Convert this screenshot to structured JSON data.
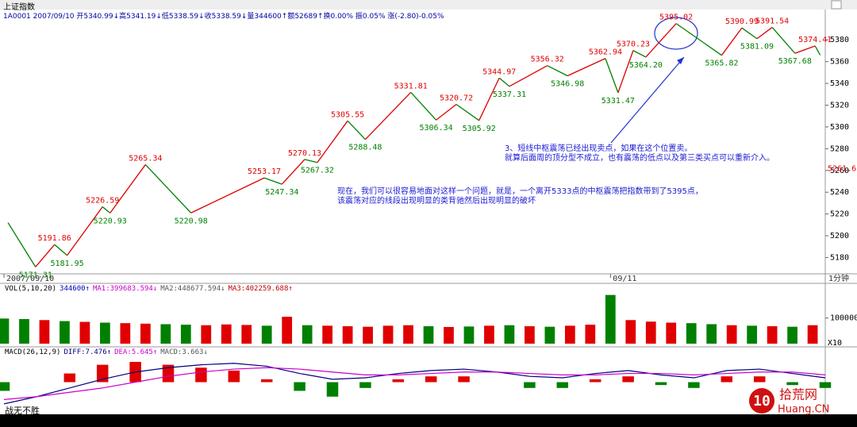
{
  "header": {
    "title": "上证指数",
    "info": "1A0001 2007/09/10 开5340.99↓高5341.19↓低5338.59↓收5338.59↓量344600↑额52689↑换0.00% 振0.05% 涨(-2.80)-0.05%"
  },
  "chart_data": [
    {
      "type": "line",
      "name": "price",
      "x": [
        1.6,
        12.5,
        20,
        25,
        39,
        42,
        56,
        74,
        103,
        110,
        119,
        124,
        136,
        143,
        161,
        171,
        179,
        188,
        196,
        200,
        215,
        223,
        238,
        243,
        249,
        254,
        266,
        284,
        292,
        298,
        304,
        313,
        321,
        323
      ],
      "values": [
        5212,
        5171.31,
        5191.86,
        5181.95,
        5226.59,
        5220.93,
        5265.34,
        5220.98,
        5253.17,
        5247.34,
        5270.13,
        5267.32,
        5305.55,
        5288.48,
        5331.81,
        5306.34,
        5320.72,
        5305.92,
        5344.97,
        5337.31,
        5356.32,
        5346.98,
        5362.94,
        5331.47,
        5370.23,
        5364.2,
        5395.02,
        5365.82,
        5390.99,
        5381.09,
        5391.54,
        5367.68,
        5374.41,
        5366
      ],
      "value_labels": [
        null,
        "5171.31",
        "5191.86",
        "5181.95",
        "5226.59",
        "5220.93",
        "5265.34",
        "5220.98",
        "5253.17",
        "5247.34",
        "5270.13",
        "5267.32",
        "5305.55",
        "5288.48",
        "5331.81",
        "5306.34",
        "5320.72",
        "5305.92",
        "5344.97",
        "5337.31",
        "5356.32",
        "5346.98",
        "5362.94",
        "5331.47",
        "5370.23",
        "5364.20",
        "5395.02",
        "5365.82",
        "5390.99",
        "5381.09",
        "5391.54",
        "5367.68",
        "5374.41",
        null
      ],
      "up_color": "#e00000",
      "down_color": "#008000",
      "xlim": [
        0,
        325
      ],
      "xticks": [
        {
          "value": 0,
          "label": "2007/09/10"
        },
        {
          "value": 240,
          "label": "09/11"
        }
      ],
      "ylim": [
        5165,
        5413
      ],
      "yticks": [
        5180,
        5200,
        5220,
        5240,
        5260,
        5280,
        5300,
        5320,
        5340,
        5360,
        5380
      ],
      "ref_level": 5261.6,
      "period": "1分钟"
    },
    {
      "type": "bar",
      "name": "volume",
      "legend": [
        "VOL(5,10,20)",
        "344600↑",
        "MA1:399683.594↓",
        "MA2:448677.594↓",
        "MA3:402259.688↑"
      ],
      "legend_colors": [
        "#000000",
        "#0000c0",
        "#cc00cc",
        "#555555",
        "#c00000"
      ],
      "x": [
        0,
        8,
        16,
        24,
        32,
        40,
        48,
        56,
        64,
        72,
        80,
        88,
        96,
        104,
        112,
        120,
        128,
        136,
        144,
        152,
        160,
        168,
        176,
        184,
        192,
        200,
        208,
        216,
        224,
        232,
        240,
        248,
        256,
        264,
        272,
        280,
        288,
        296,
        304,
        312,
        320
      ],
      "values": [
        98000,
        96000,
        92000,
        88000,
        85000,
        82000,
        80000,
        78000,
        76000,
        74000,
        72000,
        75000,
        73000,
        70000,
        105000,
        72000,
        70000,
        68000,
        66000,
        70000,
        72000,
        68000,
        65000,
        67000,
        70000,
        72000,
        68000,
        66000,
        70000,
        74000,
        190000,
        92000,
        86000,
        82000,
        80000,
        76000,
        72000,
        70000,
        68000,
        66000,
        72000
      ],
      "xlim": [
        0,
        325
      ],
      "ylim": [
        0,
        226000
      ],
      "yticks": [
        100000
      ],
      "scale_label": "X10"
    },
    {
      "type": "macd",
      "name": "macd",
      "legend": [
        "MACD(26,12,9)",
        "DIFF:7.476↑",
        "DEA:5.645↑",
        "MACD:3.663↓"
      ],
      "legend_colors": [
        "#000000",
        "#000080",
        "#cc00cc",
        "#555555"
      ],
      "x": [
        0,
        13,
        26,
        39,
        52,
        65,
        78,
        91,
        104,
        117,
        130,
        143,
        156,
        169,
        182,
        195,
        208,
        221,
        234,
        247,
        260,
        273,
        286,
        299,
        312,
        325
      ],
      "series": [
        {
          "name": "DIFF",
          "color": "#000080",
          "values": [
            -15,
            -10,
            -4,
            2,
            7,
            10,
            12,
            13,
            11,
            6,
            2,
            3,
            6,
            8,
            9,
            7,
            4,
            3,
            6,
            8,
            5,
            3,
            8,
            9,
            6,
            3
          ]
        },
        {
          "name": "DEA",
          "color": "#cc00cc",
          "values": [
            -12,
            -10,
            -7,
            -4,
            0,
            4,
            7,
            9,
            10,
            9,
            7,
            5,
            5,
            6,
            7,
            7,
            6,
            5,
            5,
            6,
            6,
            5,
            6,
            7,
            7,
            5
          ]
        }
      ],
      "macd": [
        -6,
        0,
        6,
        12,
        14,
        12,
        10,
        8,
        2,
        -6,
        -10,
        -4,
        2,
        4,
        4,
        0,
        -4,
        -4,
        2,
        4,
        -2,
        -4,
        4,
        4,
        -2,
        -4
      ],
      "xlim": [
        0,
        325
      ],
      "ylim": [
        -20,
        20
      ]
    }
  ],
  "annotations": [
    [
      "3、短线中枢震荡已经出现卖点，如果在这个位置卖。",
      "就算后面周的顶分型不成立，也有震荡的低点以及第三类买点可以重新介入。"
    ],
    [
      "现在，我们可以很容易地面对这样一个问题，就是，一个离开5333点的中枢震荡把指数带到了5395点，",
      "该震荡对应的线段出现明显的类背驰然后出现明显的破坏"
    ]
  ],
  "footer": "战无不胜",
  "watermark": {
    "logo": "10",
    "site": "拾荒网",
    "domain": "Huang.CN"
  }
}
